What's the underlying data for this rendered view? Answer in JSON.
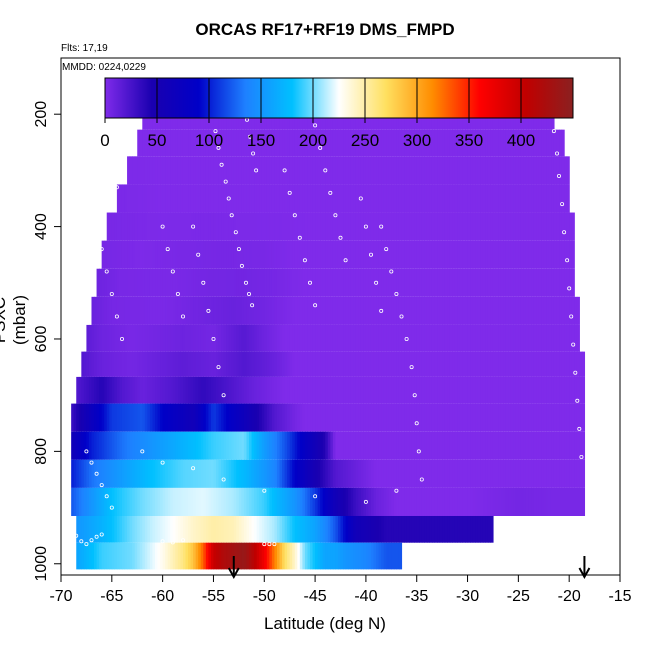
{
  "chart_data": {
    "type": "heatmap",
    "title": "ORCAS RF17+RF19 DMS_FMPD",
    "annotations": [
      "Flts: 17,19",
      "MMDD: 0224,0229"
    ],
    "xlabel": "Latitude (deg N)",
    "ylabel": "PSXC (mbar)",
    "xlim": [
      -70,
      -15
    ],
    "ylim": [
      1020,
      100
    ],
    "y_reversed": true,
    "x_ticks": [
      -70,
      -65,
      -60,
      -55,
      -50,
      -45,
      -40,
      -35,
      -30,
      -25,
      -20,
      -15
    ],
    "y_ticks": [
      200,
      400,
      600,
      800,
      1000
    ],
    "colorbar": {
      "ticks": [
        0,
        50,
        100,
        150,
        200,
        250,
        300,
        350,
        400
      ],
      "range": [
        0,
        450
      ],
      "colors": [
        "#7f2bea",
        "#1a00b0",
        "#0000c8",
        "#1e80ff",
        "#00c0ff",
        "#ffffff",
        "#ffe060",
        "#ff8c00",
        "#ff0000",
        "#c00000",
        "#8b2020"
      ]
    },
    "layers": [
      {
        "p": 985,
        "x0": -68.5,
        "x1": -36.5,
        "segs": [
          [
            -68.5,
            160
          ],
          [
            -66,
            190
          ],
          [
            -63,
            200
          ],
          [
            -60,
            230
          ],
          [
            -58,
            260
          ],
          [
            -57,
            285
          ],
          [
            -56,
            330
          ],
          [
            -55,
            400
          ],
          [
            -54,
            420
          ],
          [
            -53,
            430
          ],
          [
            -52,
            440
          ],
          [
            -51,
            410
          ],
          [
            -50,
            370
          ],
          [
            -49,
            320
          ],
          [
            -48,
            270
          ],
          [
            -47,
            240
          ],
          [
            -46,
            200
          ],
          [
            -45,
            180
          ],
          [
            -44,
            160
          ],
          [
            -43,
            160
          ],
          [
            -42,
            150
          ],
          [
            -40,
            140
          ],
          [
            -38,
            120
          ]
        ]
      },
      {
        "p": 940,
        "x0": -68.5,
        "x1": -27.5,
        "segs": [
          [
            -68.5,
            150
          ],
          [
            -66,
            170
          ],
          [
            -63,
            200
          ],
          [
            -61,
            215
          ],
          [
            -59,
            225
          ],
          [
            -57,
            240
          ],
          [
            -55,
            250
          ],
          [
            -53,
            245
          ],
          [
            -51,
            225
          ],
          [
            -49,
            210
          ],
          [
            -47,
            180
          ],
          [
            -45,
            160
          ],
          [
            -43,
            120
          ],
          [
            -41,
            60
          ],
          [
            -38,
            40
          ],
          [
            -35,
            40
          ]
        ]
      },
      {
        "p": 890,
        "x0": -69,
        "x1": -18.5,
        "segs": [
          [
            -69,
            120
          ],
          [
            -67,
            150
          ],
          [
            -65,
            180
          ],
          [
            -62,
            200
          ],
          [
            -59,
            215
          ],
          [
            -56,
            220
          ],
          [
            -53,
            210
          ],
          [
            -50,
            190
          ],
          [
            -47,
            150
          ],
          [
            -45,
            110
          ],
          [
            -43,
            60
          ],
          [
            -41,
            30
          ],
          [
            -39,
            10
          ],
          [
            -37,
            0
          ],
          [
            -30,
            0
          ],
          [
            -25,
            5
          ],
          [
            -21,
            3
          ]
        ]
      },
      {
        "p": 840,
        "x0": -69,
        "x1": -18.5,
        "segs": [
          [
            -69,
            100
          ],
          [
            -67,
            130
          ],
          [
            -64,
            155
          ],
          [
            -61,
            180
          ],
          [
            -58,
            195
          ],
          [
            -55,
            200
          ],
          [
            -52,
            175
          ],
          [
            -49,
            140
          ],
          [
            -47,
            90
          ],
          [
            -45,
            50
          ],
          [
            -43,
            20
          ],
          [
            -41,
            10
          ],
          [
            -39,
            0
          ]
        ]
      },
      {
        "p": 790,
        "x0": -69,
        "x1": -18.5,
        "segs": [
          [
            -69,
            60
          ],
          [
            -67,
            100
          ],
          [
            -64,
            130
          ],
          [
            -61,
            150
          ],
          [
            -58,
            170
          ],
          [
            -55,
            190
          ],
          [
            -52,
            200
          ],
          [
            -50,
            155
          ],
          [
            -48,
            120
          ],
          [
            -46,
            80
          ],
          [
            -44,
            40
          ],
          [
            -43,
            0
          ]
        ]
      },
      {
        "p": 740,
        "x0": -69,
        "x1": -18.5,
        "segs": [
          [
            -69,
            30
          ],
          [
            -67,
            70
          ],
          [
            -65,
            110
          ],
          [
            -62,
            120
          ],
          [
            -60,
            90
          ],
          [
            -57,
            60
          ],
          [
            -55,
            110
          ],
          [
            -53,
            80
          ],
          [
            -51,
            50
          ],
          [
            -49,
            20
          ],
          [
            -47,
            5
          ],
          [
            -46,
            0
          ]
        ]
      },
      {
        "p": 690,
        "x0": -68.5,
        "x1": -18.5,
        "segs": [
          [
            -68.5,
            20
          ],
          [
            -66,
            40
          ],
          [
            -64,
            20
          ],
          [
            -62,
            10
          ],
          [
            -59,
            20
          ],
          [
            -56,
            35
          ],
          [
            -53,
            20
          ],
          [
            -51,
            10
          ],
          [
            -48,
            0
          ]
        ]
      },
      {
        "p": 645,
        "x0": -68,
        "x1": -18.5,
        "segs": [
          [
            -68,
            20
          ],
          [
            -66,
            10
          ],
          [
            -63,
            5
          ],
          [
            -58,
            15
          ],
          [
            -55,
            10
          ],
          [
            -52,
            20
          ],
          [
            -49,
            10
          ],
          [
            -47,
            0
          ]
        ]
      },
      {
        "p": 600,
        "x0": -67.5,
        "x1": -19,
        "segs": [
          [
            -67.5,
            15
          ],
          [
            -66,
            8
          ],
          [
            -63,
            3
          ],
          [
            -58,
            8
          ],
          [
            -55,
            5
          ],
          [
            -52,
            18
          ],
          [
            -50,
            8
          ],
          [
            -48,
            0
          ]
        ]
      },
      {
        "p": 550,
        "x0": -67,
        "x1": -19,
        "segs": [
          [
            -67,
            10
          ],
          [
            -65,
            4
          ],
          [
            -60,
            2
          ],
          [
            -57,
            6
          ],
          [
            -53,
            10
          ],
          [
            -50,
            6
          ],
          [
            -47,
            0
          ]
        ]
      },
      {
        "p": 500,
        "x0": -66.5,
        "x1": -19.5,
        "segs": [
          [
            -66.5,
            8
          ],
          [
            -64,
            3
          ],
          [
            -59,
            2
          ],
          [
            -56,
            5
          ],
          [
            -52,
            6
          ],
          [
            -49,
            4
          ],
          [
            -46,
            0
          ]
        ]
      },
      {
        "p": 450,
        "x0": -66,
        "x1": -19.5,
        "segs": [
          [
            -66,
            4
          ],
          [
            -62,
            1
          ],
          [
            -58,
            3
          ],
          [
            -54,
            4
          ],
          [
            -50,
            3
          ],
          [
            -47,
            0
          ]
        ]
      },
      {
        "p": 400,
        "x0": -65.5,
        "x1": -19.5,
        "segs": [
          [
            -65.5,
            3
          ],
          [
            -60,
            1
          ],
          [
            -55,
            2
          ],
          [
            -50,
            1
          ],
          [
            -45,
            0
          ]
        ]
      },
      {
        "p": 350,
        "x0": -64.5,
        "x1": -20,
        "segs": [
          [
            -64.5,
            2
          ],
          [
            -60,
            0
          ]
        ]
      },
      {
        "p": 300,
        "x0": -63.5,
        "x1": -20,
        "segs": [
          [
            -63.5,
            1
          ],
          [
            -60,
            0
          ]
        ]
      },
      {
        "p": 250,
        "x0": -62.5,
        "x1": -20.5,
        "segs": [
          [
            -62.5,
            0
          ]
        ]
      },
      {
        "p": 205,
        "x0": -62,
        "x1": -21.5,
        "segs": [
          [
            -62,
            0
          ]
        ]
      }
    ],
    "track_points": [
      [
        -62,
        180
      ],
      [
        -61.5,
        180
      ],
      [
        -61,
        180
      ],
      [
        -60.5,
        180
      ],
      [
        -60,
        180
      ],
      [
        -59.5,
        180
      ],
      [
        -59,
        180
      ],
      [
        -58.5,
        180
      ],
      [
        -58,
        180
      ],
      [
        -57.5,
        180
      ],
      [
        -57,
        180
      ],
      [
        -56.5,
        180
      ],
      [
        -56,
        180
      ],
      [
        -55.5,
        185
      ],
      [
        -55.2,
        200
      ],
      [
        -54.8,
        230
      ],
      [
        -54.5,
        260
      ],
      [
        -54.2,
        290
      ],
      [
        -53.8,
        320
      ],
      [
        -53.5,
        350
      ],
      [
        -53.2,
        380
      ],
      [
        -52.8,
        410
      ],
      [
        -52.5,
        440
      ],
      [
        -52.2,
        470
      ],
      [
        -51.8,
        500
      ],
      [
        -51.5,
        520
      ],
      [
        -51.2,
        540
      ],
      [
        -50.5,
        190
      ],
      [
        -50,
        185
      ],
      [
        -49.5,
        185
      ],
      [
        -49,
        185
      ],
      [
        -48.5,
        185
      ],
      [
        -48,
        185
      ],
      [
        -47.5,
        185
      ],
      [
        -47,
        185
      ],
      [
        -46.5,
        185
      ],
      [
        -52,
        190
      ],
      [
        -51.7,
        210
      ],
      [
        -51.4,
        240
      ],
      [
        -51.1,
        270
      ],
      [
        -50.8,
        300
      ],
      [
        -45,
        220
      ],
      [
        -44.5,
        260
      ],
      [
        -44,
        300
      ],
      [
        -43.5,
        340
      ],
      [
        -43,
        380
      ],
      [
        -42.5,
        420
      ],
      [
        -42,
        460
      ],
      [
        -38.5,
        400
      ],
      [
        -38,
        440
      ],
      [
        -37.5,
        480
      ],
      [
        -37,
        520
      ],
      [
        -36.5,
        560
      ],
      [
        -36,
        600
      ],
      [
        -35.5,
        650
      ],
      [
        -35.2,
        700
      ],
      [
        -35,
        750
      ],
      [
        -34.8,
        800
      ],
      [
        -34.5,
        850
      ],
      [
        -34.5,
        190
      ],
      [
        -34,
        188
      ],
      [
        -33,
        188
      ],
      [
        -32,
        188
      ],
      [
        -31,
        188
      ],
      [
        -30,
        188
      ],
      [
        -29,
        188
      ],
      [
        -28,
        188
      ],
      [
        -27,
        188
      ],
      [
        -26,
        188
      ],
      [
        -25,
        188
      ],
      [
        -24,
        188
      ],
      [
        -23,
        188
      ],
      [
        -22,
        188
      ],
      [
        -21.8,
        200
      ],
      [
        -21.5,
        230
      ],
      [
        -21.2,
        270
      ],
      [
        -21,
        310
      ],
      [
        -20.7,
        360
      ],
      [
        -20.5,
        410
      ],
      [
        -20.2,
        460
      ],
      [
        -20,
        510
      ],
      [
        -19.8,
        560
      ],
      [
        -19.6,
        610
      ],
      [
        -19.4,
        660
      ],
      [
        -19.2,
        710
      ],
      [
        -19,
        760
      ],
      [
        -18.8,
        810
      ],
      [
        -66.5,
        330
      ],
      [
        -66,
        330
      ],
      [
        -65.5,
        330
      ],
      [
        -65,
        330
      ],
      [
        -64.5,
        330
      ],
      [
        -66,
        440
      ],
      [
        -65.5,
        480
      ],
      [
        -65,
        520
      ],
      [
        -64.5,
        560
      ],
      [
        -64,
        600
      ],
      [
        -60,
        400
      ],
      [
        -59.5,
        440
      ],
      [
        -59,
        480
      ],
      [
        -58.5,
        520
      ],
      [
        -58,
        560
      ],
      [
        -57,
        400
      ],
      [
        -56.5,
        450
      ],
      [
        -56,
        500
      ],
      [
        -55.5,
        550
      ],
      [
        -55,
        600
      ],
      [
        -54.5,
        650
      ],
      [
        -54,
        700
      ],
      [
        -48,
        300
      ],
      [
        -47.5,
        340
      ],
      [
        -47,
        380
      ],
      [
        -46.5,
        420
      ],
      [
        -46,
        460
      ],
      [
        -45.5,
        500
      ],
      [
        -45,
        540
      ],
      [
        -40.5,
        350
      ],
      [
        -40,
        400
      ],
      [
        -39.5,
        450
      ],
      [
        -39,
        500
      ],
      [
        -38.5,
        550
      ],
      [
        -68.5,
        950
      ],
      [
        -68,
        960
      ],
      [
        -67.5,
        965
      ],
      [
        -67,
        958
      ],
      [
        -66.5,
        952
      ],
      [
        -66,
        948
      ],
      [
        -60,
        960
      ],
      [
        -59,
        962
      ],
      [
        -58,
        958
      ],
      [
        -50,
        965
      ],
      [
        -49.5,
        965
      ],
      [
        -49,
        965
      ],
      [
        -67.5,
        800
      ],
      [
        -67,
        820
      ],
      [
        -66.5,
        840
      ],
      [
        -66,
        860
      ],
      [
        -65.5,
        880
      ],
      [
        -65,
        900
      ],
      [
        -62,
        800
      ],
      [
        -60,
        820
      ],
      [
        -57,
        830
      ],
      [
        -54,
        850
      ],
      [
        -50,
        870
      ],
      [
        -45,
        880
      ],
      [
        -40,
        890
      ],
      [
        -37,
        870
      ]
    ],
    "arrows_lat": [
      -53,
      -18.5
    ]
  }
}
